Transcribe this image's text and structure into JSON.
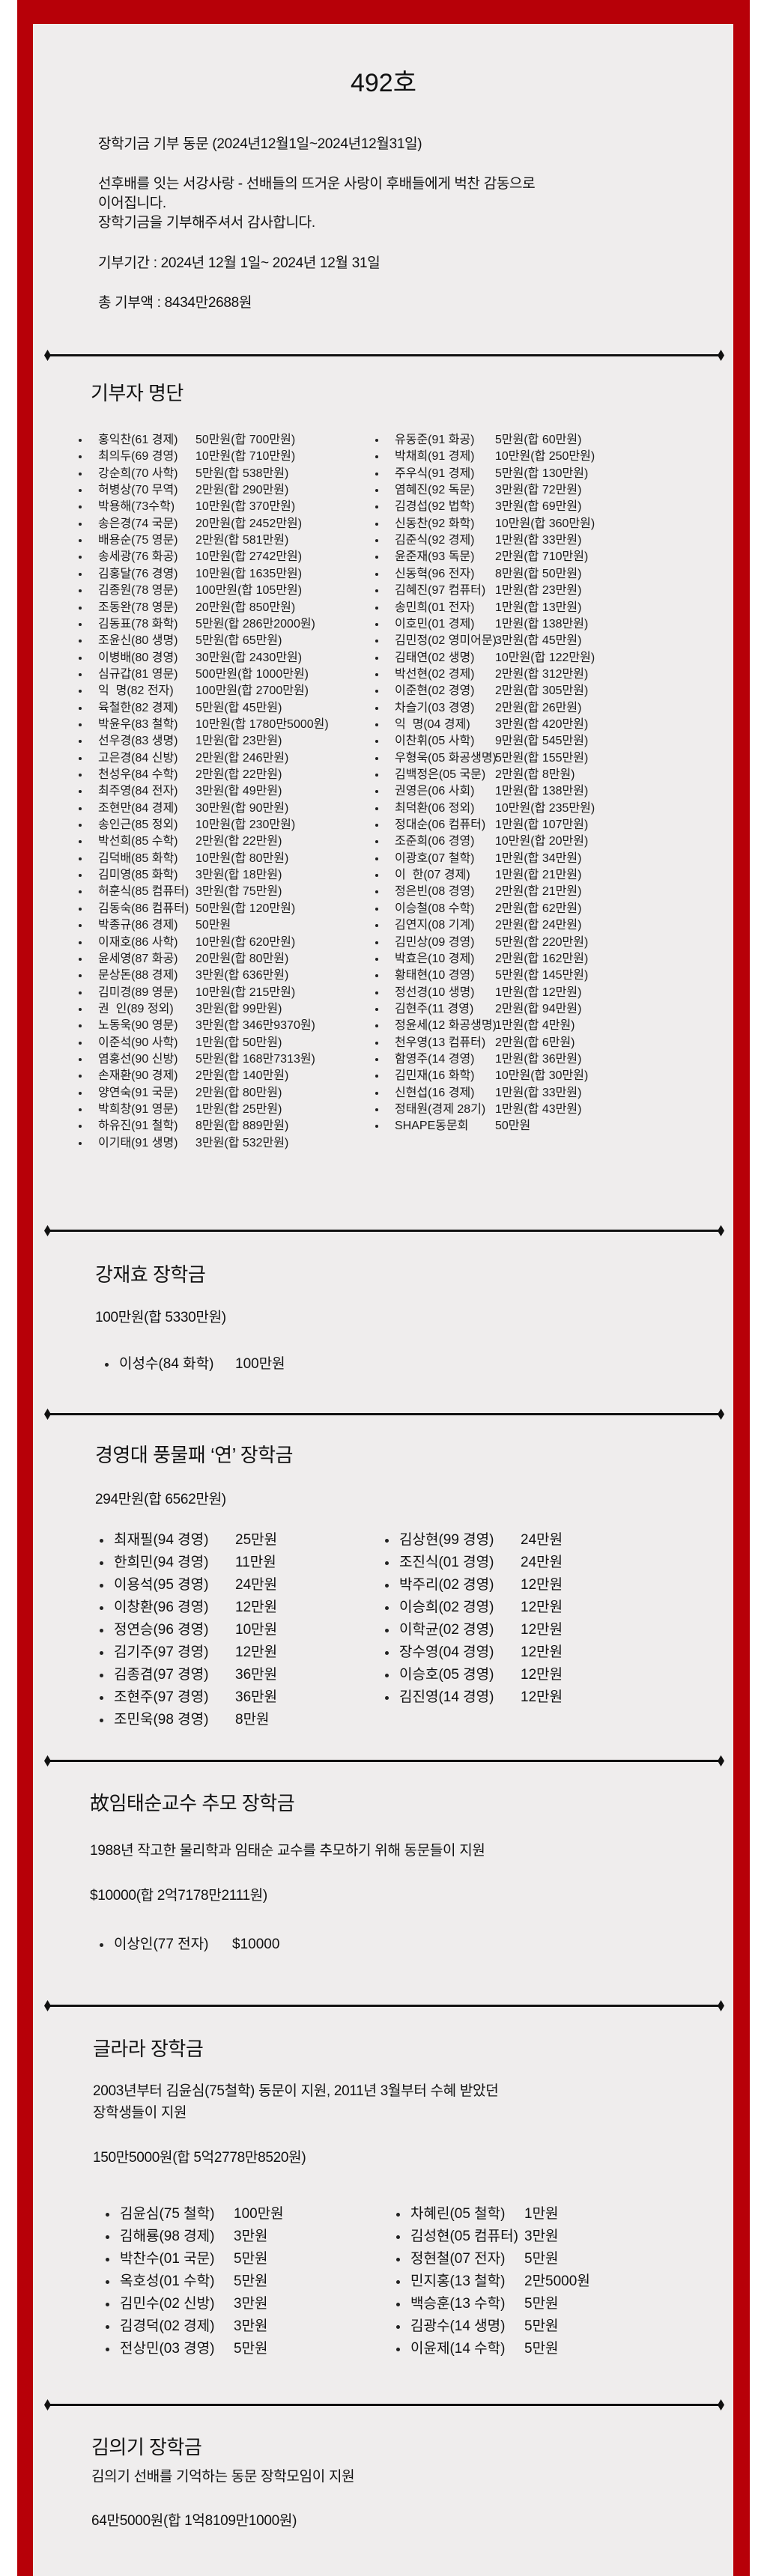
{
  "colors": {
    "frame": "#b70008",
    "panel": "#efeded",
    "text": "#111111"
  },
  "header": {
    "title": "492호",
    "intro": "장학기금 기부 동문 (2024년12월1일~2024년12월31일)",
    "message_line1": "선후배를 잇는 서강사랑 - 선배들의 뜨거운 사랑이 후배들에게 벅찬 감동으로",
    "message_line2": "이어집니다.",
    "message_line3": "장학기금을 기부해주셔서 감사합니다.",
    "period": "기부기간 : 2024년 12월 1일~ 2024년 12월 31일",
    "total": "총 기부액 : 8434만2688원"
  },
  "donors": {
    "heading": "기부자 명단",
    "left": [
      {
        "name": "홍익찬(61 경제)",
        "amount": "50만원(합 700만원)"
      },
      {
        "name": "최의두(69 경영)",
        "amount": "10만원(합 710만원)"
      },
      {
        "name": "강순희(70 사학)",
        "amount": "5만원(합 538만원)"
      },
      {
        "name": "허병상(70 무역)",
        "amount": "2만원(합 290만원)"
      },
      {
        "name": "박용해(73수학)",
        "amount": "10만원(합 370만원)"
      },
      {
        "name": "송은경(74 국문)",
        "amount": "20만원(합 2452만원)"
      },
      {
        "name": "배용순(75 영문)",
        "amount": "2만원(합 581만원)"
      },
      {
        "name": "송세광(76 화공)",
        "amount": "10만원(합 2742만원)"
      },
      {
        "name": "김홍달(76 경영)",
        "amount": "10만원(합 1635만원)"
      },
      {
        "name": "김종원(78 영문)",
        "amount": "100만원(합 105만원)"
      },
      {
        "name": "조동완(78 영문)",
        "amount": "20만원(합 850만원)"
      },
      {
        "name": "김동표(78 화학)",
        "amount": "5만원(합 286만2000원)"
      },
      {
        "name": "조윤신(80 생명)",
        "amount": "5만원(합 65만원)"
      },
      {
        "name": "이병배(80 경영)",
        "amount": "30만원(합 2430만원)"
      },
      {
        "name": "심규갑(81 영문)",
        "amount": "500만원(합 1000만원)"
      },
      {
        "name": "익  명(82 전자)",
        "amount": "100만원(합 2700만원)"
      },
      {
        "name": "육철한(82 경제)",
        "amount": "5만원(합 45만원)"
      },
      {
        "name": "박윤우(83 철학)",
        "amount": "10만원(합 1780만5000원)"
      },
      {
        "name": "선우경(83 생명)",
        "amount": "1만원(합 23만원)"
      },
      {
        "name": "고은경(84 신방)",
        "amount": "2만원(합 246만원)"
      },
      {
        "name": "천성우(84 수학)",
        "amount": "2만원(합 22만원)"
      },
      {
        "name": "최주영(84 전자)",
        "amount": "3만원(합 49만원)"
      },
      {
        "name": "조현만(84 경제)",
        "amount": "30만원(합 90만원)"
      },
      {
        "name": "송인근(85 정외)",
        "amount": "10만원(합 230만원)"
      },
      {
        "name": "박선희(85 수학)",
        "amount": "2만원(합 22만원)"
      },
      {
        "name": "김덕배(85 화학)",
        "amount": "10만원(합 80만원)"
      },
      {
        "name": "김미영(85 화학)",
        "amount": "3만원(합 18만원)"
      },
      {
        "name": "허훈식(85 컴퓨터)",
        "amount": "3만원(합 75만원)"
      },
      {
        "name": "김동숙(86 컴퓨터)",
        "amount": "50만원(합 120만원)"
      },
      {
        "name": "박종규(86 경제)",
        "amount": "50만원"
      },
      {
        "name": "이재호(86 사학)",
        "amount": "10만원(합 620만원)"
      },
      {
        "name": "윤세영(87 화공)",
        "amount": "20만원(합 80만원)"
      },
      {
        "name": "문상돈(88 경제)",
        "amount": "3만원(합 636만원)"
      },
      {
        "name": "김미경(89 영문)",
        "amount": "10만원(합 215만원)"
      },
      {
        "name": "권  인(89 정외)",
        "amount": "3만원(합 99만원)"
      },
      {
        "name": "노동욱(90 영문)",
        "amount": "3만원(합 346만9370원)"
      },
      {
        "name": "이준석(90 사학)",
        "amount": "1만원(합 50만원)"
      },
      {
        "name": "염홍선(90 신방)",
        "amount": "5만원(합 168만7313원)"
      },
      {
        "name": "손재환(90 경제)",
        "amount": "2만원(합 140만원)"
      },
      {
        "name": "양연숙(91 국문)",
        "amount": "2만원(합 80만원)"
      },
      {
        "name": "박희창(91 영문)",
        "amount": "1만원(합 25만원)"
      },
      {
        "name": "하유진(91 철학)",
        "amount": "8만원(합 889만원)"
      },
      {
        "name": "이기태(91 생명)",
        "amount": "3만원(합 532만원)"
      }
    ],
    "right": [
      {
        "name": "유동준(91 화공)",
        "amount": "5만원(합 60만원)"
      },
      {
        "name": "박채희(91 경제)",
        "amount": "10만원(합 250만원)"
      },
      {
        "name": "주우식(91 경제)",
        "amount": "5만원(합 130만원)"
      },
      {
        "name": "염혜진(92 독문)",
        "amount": "3만원(합 72만원)"
      },
      {
        "name": "김경섭(92 법학)",
        "amount": "3만원(합 69만원)"
      },
      {
        "name": "신동찬(92 화학)",
        "amount": "10만원(합 360만원)"
      },
      {
        "name": "김준식(92 경제)",
        "amount": "1만원(합 33만원)"
      },
      {
        "name": "윤준재(93 독문)",
        "amount": "2만원(합 710만원)"
      },
      {
        "name": "신동혁(96 전자)",
        "amount": "8만원(합 50만원)"
      },
      {
        "name": "김혜진(97 컴퓨터)",
        "amount": "1만원(합 23만원)"
      },
      {
        "name": "송민희(01 전자)",
        "amount": "1만원(합 13만원)"
      },
      {
        "name": "이호민(01 경제)",
        "amount": "1만원(합 138만원)"
      },
      {
        "name": "김민정(02 영미어문)",
        "amount": "3만원(합 45만원)"
      },
      {
        "name": "김태연(02 생명)",
        "amount": "10만원(합 122만원)"
      },
      {
        "name": "박선현(02 경제)",
        "amount": "2만원(합 312만원)"
      },
      {
        "name": "이준현(02 경영)",
        "amount": "2만원(합 305만원)"
      },
      {
        "name": "차슬기(03 경영)",
        "amount": "2만원(합 26만원)"
      },
      {
        "name": "익  명(04 경제)",
        "amount": "3만원(합 420만원)"
      },
      {
        "name": "이찬휘(05 사학)",
        "amount": "9만원(합 545만원)"
      },
      {
        "name": "우형욱(05 화공생명)",
        "amount": "5만원(합 155만원)"
      },
      {
        "name": "김백정은(05 국문)",
        "amount": "2만원(합 8만원)"
      },
      {
        "name": "권영은(06 사회)",
        "amount": "1만원(합 138만원)"
      },
      {
        "name": "최덕환(06 정외)",
        "amount": "10만원(합 235만원)"
      },
      {
        "name": "정대순(06 컴퓨터)",
        "amount": "1만원(합 107만원)"
      },
      {
        "name": "조준희(06 경영)",
        "amount": "10만원(합 20만원)"
      },
      {
        "name": "이광호(07 철학)",
        "amount": "1만원(합 34만원)"
      },
      {
        "name": "이  한(07 경제)",
        "amount": "1만원(합 21만원)"
      },
      {
        "name": "정은빈(08 경영)",
        "amount": "2만원(합 21만원)"
      },
      {
        "name": "이승철(08 수학)",
        "amount": "2만원(합 62만원)"
      },
      {
        "name": "김연지(08 기계)",
        "amount": "2만원(합 24만원)"
      },
      {
        "name": "김민상(09 경영)",
        "amount": "5만원(합 220만원)"
      },
      {
        "name": "박효은(10 경제)",
        "amount": "2만원(합 162만원)"
      },
      {
        "name": "황태현(10 경영)",
        "amount": "5만원(합 145만원)"
      },
      {
        "name": "정선경(10 생명)",
        "amount": "1만원(합 12만원)"
      },
      {
        "name": "김현주(11 경영)",
        "amount": "2만원(합 94만원)"
      },
      {
        "name": "정윤세(12 화공생명)",
        "amount": "1만원(합 4만원)"
      },
      {
        "name": "천우영(13 컴퓨터)",
        "amount": "2만원(합 6만원)"
      },
      {
        "name": "함영주(14 경영)",
        "amount": "1만원(합 36만원)"
      },
      {
        "name": "김민재(16 화학)",
        "amount": "10만원(합 30만원)"
      },
      {
        "name": "신현섭(16 경제)",
        "amount": "1만원(합 33만원)"
      },
      {
        "name": "정태원(경제 28기)",
        "amount": "1만원(합 43만원)"
      },
      {
        "name": "SHAPE동문회",
        "amount": "50만원"
      }
    ]
  },
  "kang": {
    "heading": "강재효 장학금",
    "amount": "100만원(합 5330만원)",
    "donors": [
      {
        "name": "이성수(84 화학)",
        "amount": "100만원"
      }
    ]
  },
  "pungmul": {
    "heading": "경영대 풍물패 ‘연’ 장학금",
    "amount": "294만원(합 6562만원)",
    "left": [
      {
        "name": "최재필(94 경영)",
        "amount": "25만원"
      },
      {
        "name": "한희민(94 경영)",
        "amount": "11만원"
      },
      {
        "name": "이용석(95 경영)",
        "amount": "24만원"
      },
      {
        "name": "이창환(96 경영)",
        "amount": "12만원"
      },
      {
        "name": "정연승(96 경영)",
        "amount": "10만원"
      },
      {
        "name": "김기주(97 경영)",
        "amount": "12만원"
      },
      {
        "name": "김종겸(97 경영)",
        "amount": "36만원"
      },
      {
        "name": "조현주(97 경영)",
        "amount": "36만원"
      },
      {
        "name": "조민욱(98 경영)",
        "amount": "8만원"
      }
    ],
    "right": [
      {
        "name": "김상현(99 경영)",
        "amount": "24만원"
      },
      {
        "name": "조진식(01 경영)",
        "amount": "24만원"
      },
      {
        "name": "박주리(02 경영)",
        "amount": "12만원"
      },
      {
        "name": "이승희(02 경영)",
        "amount": "12만원"
      },
      {
        "name": "이학균(02 경영)",
        "amount": "12만원"
      },
      {
        "name": "장수영(04 경영)",
        "amount": "12만원"
      },
      {
        "name": "이승호(05 경영)",
        "amount": "12만원"
      },
      {
        "name": "김진영(14 경영)",
        "amount": "12만원"
      }
    ]
  },
  "lim": {
    "heading": "故임태순교수 추모 장학금",
    "description": "1988년 작고한 물리학과 임태순 교수를 추모하기 위해 동문들이 지원",
    "amount": "$10000(합 2억7178만2111원)",
    "donors": [
      {
        "name": "이상인(77 전자)",
        "amount": "$10000"
      }
    ]
  },
  "clara": {
    "heading": "글라라 장학금",
    "description_line1": "2003년부터 김윤심(75철학) 동문이 지원, 2011년 3월부터 수혜 받았던",
    "description_line2": "장학생들이 지원",
    "amount": "150만5000원(합 5억2778만8520원)",
    "left": [
      {
        "name": "김윤심(75 철학)",
        "amount": "100만원"
      },
      {
        "name": "김해룡(98 경제)",
        "amount": "3만원"
      },
      {
        "name": "박찬수(01 국문)",
        "amount": "5만원"
      },
      {
        "name": "옥호성(01 수학)",
        "amount": "5만원"
      },
      {
        "name": "김민수(02 신방)",
        "amount": "3만원"
      },
      {
        "name": "김경덕(02 경제)",
        "amount": "3만원"
      },
      {
        "name": "전상민(03 경영)",
        "amount": "5만원"
      }
    ],
    "right": [
      {
        "name": "차혜린(05 철학)",
        "amount": "1만원"
      },
      {
        "name": "김성현(05 컴퓨터)",
        "amount": "3만원"
      },
      {
        "name": "정현철(07 전자)",
        "amount": "5만원"
      },
      {
        "name": "민지홍(13 철학)",
        "amount": "2만5000원"
      },
      {
        "name": "백승훈(13 수학)",
        "amount": "5만원"
      },
      {
        "name": "김광수(14 생명)",
        "amount": "5만원"
      },
      {
        "name": "이윤제(14 수학)",
        "amount": "5만원"
      }
    ]
  },
  "kimuigi": {
    "heading": "김의기 장학금",
    "description": "김의기 선배를 기억하는 동문 장학모임이 지원",
    "amount": "64만5000원(합 1억8109만1000원)"
  }
}
